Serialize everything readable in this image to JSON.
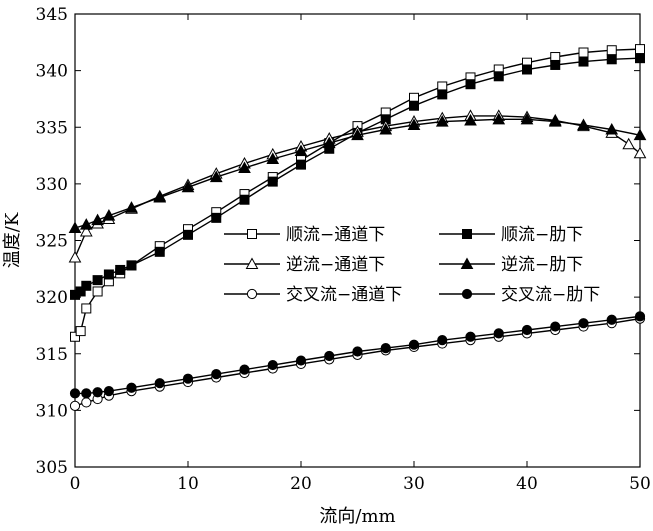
{
  "chart_data": {
    "type": "line",
    "xlabel": "流向/mm",
    "ylabel": "温度/K",
    "xlim": [
      0,
      50
    ],
    "ylim": [
      305,
      345
    ],
    "xticks": [
      0,
      10,
      20,
      30,
      40,
      50
    ],
    "yticks": [
      305,
      310,
      315,
      320,
      325,
      330,
      335,
      340,
      345
    ],
    "grid": false,
    "legend_position": "center-left",
    "series": [
      {
        "name": "顺流−通道下",
        "marker": "square-open",
        "x": [
          0,
          0.5,
          1,
          2,
          3,
          4,
          5,
          7.5,
          10,
          12.5,
          15,
          17.5,
          20,
          22.5,
          25,
          27.5,
          30,
          32.5,
          35,
          37.5,
          40,
          42.5,
          45,
          47.5,
          50
        ],
        "y": [
          316.5,
          317,
          319,
          320.5,
          321.4,
          322.1,
          322.8,
          324.5,
          326,
          327.5,
          329.1,
          330.6,
          332.1,
          333.6,
          335.1,
          336.3,
          337.6,
          338.6,
          339.4,
          340.1,
          340.7,
          341.2,
          341.6,
          341.8,
          341.9
        ]
      },
      {
        "name": "顺流−肋下",
        "marker": "square-filled",
        "x": [
          0,
          0.5,
          1,
          2,
          3,
          4,
          5,
          7.5,
          10,
          12.5,
          15,
          17.5,
          20,
          22.5,
          25,
          27.5,
          30,
          32.5,
          35,
          37.5,
          40,
          42.5,
          45,
          47.5,
          50
        ],
        "y": [
          320.2,
          320.5,
          321.0,
          321.5,
          322.0,
          322.4,
          322.8,
          324.0,
          325.5,
          327.0,
          328.6,
          330.2,
          331.7,
          333.1,
          334.5,
          335.7,
          336.9,
          337.9,
          338.8,
          339.5,
          340.1,
          340.5,
          340.8,
          341.0,
          341.1
        ]
      },
      {
        "name": "逆流−通道下",
        "marker": "triangle-open",
        "x": [
          0,
          1,
          2,
          3,
          5,
          7.5,
          10,
          12.5,
          15,
          17.5,
          20,
          22.5,
          25,
          27.5,
          30,
          32.5,
          35,
          37.5,
          40,
          42.5,
          45,
          47.5,
          49,
          50
        ],
        "y": [
          323.5,
          325.8,
          326.5,
          326.9,
          327.8,
          328.9,
          329.9,
          330.9,
          331.8,
          332.6,
          333.3,
          334.0,
          334.6,
          335.1,
          335.5,
          335.8,
          336.0,
          336.0,
          335.9,
          335.6,
          335.1,
          334.5,
          333.5,
          332.7
        ]
      },
      {
        "name": "逆流−肋下",
        "marker": "triangle-filled",
        "x": [
          0,
          1,
          2,
          3,
          5,
          7.5,
          10,
          12.5,
          15,
          17.5,
          20,
          22.5,
          25,
          27.5,
          30,
          32.5,
          35,
          37.5,
          40,
          42.5,
          45,
          47.5,
          50
        ],
        "y": [
          326.1,
          326.4,
          326.8,
          327.2,
          327.9,
          328.8,
          329.7,
          330.6,
          331.4,
          332.2,
          332.9,
          333.6,
          334.3,
          334.8,
          335.2,
          335.5,
          335.6,
          335.7,
          335.7,
          335.5,
          335.2,
          334.8,
          334.3
        ]
      },
      {
        "name": "交叉流−通道下",
        "marker": "circle-open",
        "x": [
          0,
          1,
          2,
          3,
          5,
          7.5,
          10,
          12.5,
          15,
          17.5,
          20,
          22.5,
          25,
          27.5,
          30,
          32.5,
          35,
          37.5,
          40,
          42.5,
          45,
          47.5,
          50
        ],
        "y": [
          310.4,
          310.7,
          311.0,
          311.3,
          311.7,
          312.1,
          312.5,
          312.9,
          313.3,
          313.7,
          314.1,
          314.5,
          314.9,
          315.3,
          315.6,
          315.9,
          316.2,
          316.5,
          316.8,
          317.1,
          317.4,
          317.7,
          318.1
        ]
      },
      {
        "name": "交叉流−肋下",
        "marker": "circle-filled",
        "x": [
          0,
          1,
          2,
          3,
          5,
          7.5,
          10,
          12.5,
          15,
          17.5,
          20,
          22.5,
          25,
          27.5,
          30,
          32.5,
          35,
          37.5,
          40,
          42.5,
          45,
          47.5,
          50
        ],
        "y": [
          311.5,
          311.5,
          311.6,
          311.7,
          312.0,
          312.4,
          312.8,
          313.2,
          313.6,
          314.0,
          314.4,
          314.8,
          315.2,
          315.5,
          315.8,
          316.2,
          316.5,
          316.8,
          317.1,
          317.4,
          317.7,
          318.0,
          318.3
        ]
      }
    ]
  }
}
